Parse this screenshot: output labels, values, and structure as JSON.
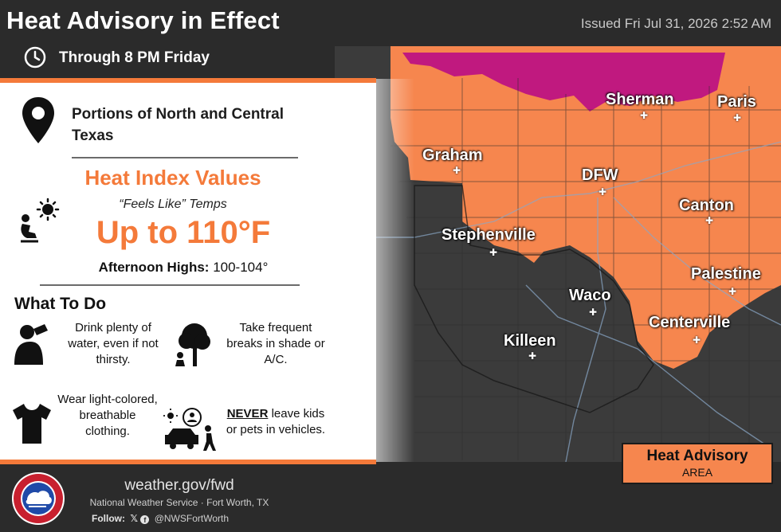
{
  "header": {
    "title": "Heat Advisory in Effect",
    "issued": "Issued Fri Jul 31, 2026 2:52 AM",
    "through": "Through 8 PM Friday",
    "clock_icon": "clock-icon"
  },
  "panel": {
    "location": "Portions of North and Central Texas",
    "heat_index_title": "Heat Index Values",
    "feels_like": "“Feels Like” Temps",
    "up_to": "Up to 110°F",
    "highs_label": "Afternoon Highs:",
    "highs_value": "100-104°",
    "what_to_do": "What To Do",
    "tips": [
      {
        "text": "Drink plenty of water, even if not thirsty.",
        "icon": "drinking-icon"
      },
      {
        "text": "Take frequent breaks in shade or A/C.",
        "icon": "tree-shade-icon"
      },
      {
        "text": "Wear light-colored, breathable clothing.",
        "icon": "tshirt-icon"
      },
      {
        "never": "NEVER",
        "text": " leave kids or pets in vehicles.",
        "icon": "car-kids-icon"
      }
    ]
  },
  "map": {
    "colors": {
      "advisory": "#f6864e",
      "warning": "#c0197f",
      "background": "#3a3a3a"
    },
    "cities": [
      {
        "name": "Sherman"
      },
      {
        "name": "Paris"
      },
      {
        "name": "Graham"
      },
      {
        "name": "DFW"
      },
      {
        "name": "Canton"
      },
      {
        "name": "Stephenville"
      },
      {
        "name": "Palestine"
      },
      {
        "name": "Waco"
      },
      {
        "name": "Centerville"
      },
      {
        "name": "Killeen"
      }
    ]
  },
  "legend": {
    "title": "Heat Advisory",
    "subtitle": "AREA"
  },
  "footer": {
    "site": "weather.gov/fwd",
    "office": "National Weather Service · Fort Worth, TX",
    "follow_label": "Follow:",
    "handle": "@NWSFortWorth",
    "logo_text": "NATIONAL WEATHER SERVICE",
    "social_icons": [
      "x-icon",
      "facebook-icon"
    ]
  }
}
